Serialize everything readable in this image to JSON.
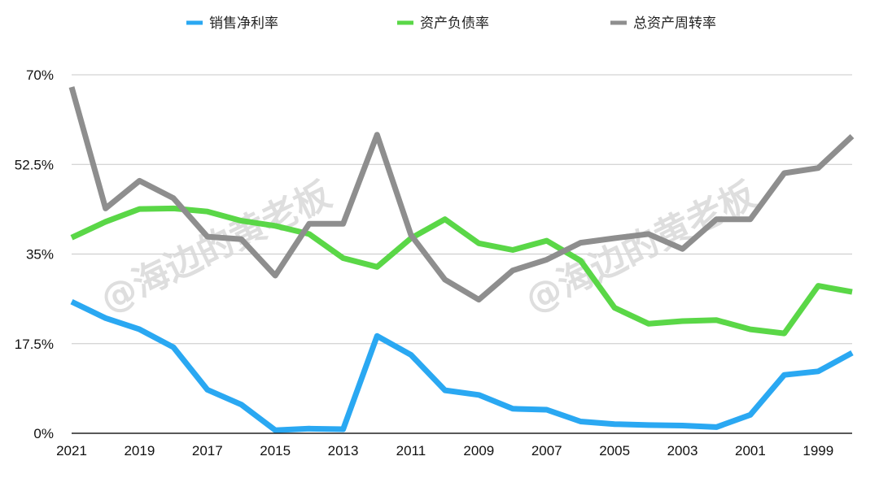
{
  "chart_data": {
    "type": "line",
    "title": "",
    "xlabel": "",
    "ylabel": "",
    "ylim": [
      0,
      70
    ],
    "y_ticks": [
      0,
      17.5,
      35,
      52.5,
      70
    ],
    "y_tick_labels": [
      "0%",
      "17.5%",
      "35%",
      "52.5%",
      "70%"
    ],
    "x": [
      2021,
      2020,
      2019,
      2018,
      2017,
      2016,
      2015,
      2014,
      2013,
      2012,
      2011,
      2010,
      2009,
      2008,
      2007,
      2006,
      2005,
      2004,
      2003,
      2002,
      2001,
      2000,
      1999,
      1998
    ],
    "x_tick_values": [
      2021,
      2019,
      2017,
      2015,
      2013,
      2011,
      2009,
      2007,
      2005,
      2003,
      2001,
      1999
    ],
    "x_tick_labels": [
      "2021",
      "2019",
      "2017",
      "2015",
      "2013",
      "2011",
      "2009",
      "2007",
      "2005",
      "2003",
      "2001",
      "1999"
    ],
    "grid": true,
    "legend_position": "top-center",
    "series": [
      {
        "name": "销售净利率",
        "color": "#2aa8f2",
        "values": [
          25.7,
          22.5,
          20.3,
          16.8,
          8.5,
          5.6,
          0.6,
          0.9,
          0.8,
          19.0,
          15.3,
          8.4,
          7.5,
          4.8,
          4.6,
          2.3,
          1.8,
          1.6,
          1.5,
          1.2,
          3.6,
          11.4,
          12.1,
          15.7
        ]
      },
      {
        "name": "资产负债率",
        "color": "#5ad747",
        "values": [
          38.2,
          41.3,
          43.8,
          43.9,
          43.3,
          41.5,
          40.5,
          38.9,
          34.2,
          32.5,
          38.1,
          41.8,
          37.1,
          35.8,
          37.6,
          33.7,
          24.5,
          21.4,
          21.9,
          22.1,
          20.3,
          19.5,
          28.8,
          27.6
        ]
      },
      {
        "name": "总资产周转率",
        "color": "#8e8e8e",
        "values": [
          67.6,
          43.9,
          49.3,
          45.9,
          38.4,
          37.9,
          30.8,
          40.9,
          40.9,
          58.3,
          38.7,
          30.0,
          26.1,
          31.8,
          33.9,
          37.2,
          38.1,
          38.9,
          36.0,
          41.8,
          41.8,
          50.8,
          51.8,
          58.0
        ]
      }
    ]
  },
  "watermark": {
    "text": "@海边的黄老板"
  }
}
